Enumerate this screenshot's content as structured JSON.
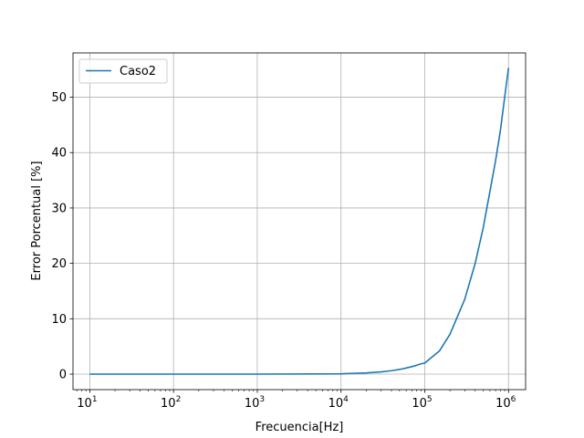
{
  "chart_data": {
    "type": "line",
    "title": "",
    "xlabel": "Frecuencia[Hz]",
    "ylabel": "Error Porcentual [%]",
    "xscale": "log",
    "xlim": [
      6.3,
      1600000
    ],
    "ylim": [
      -2.8,
      58
    ],
    "grid": true,
    "legend_position": "top-left",
    "x_ticks": [
      {
        "value": 10,
        "base": "10",
        "exp": "1"
      },
      {
        "value": 100,
        "base": "10",
        "exp": "2"
      },
      {
        "value": 1000,
        "base": "10",
        "exp": "3"
      },
      {
        "value": 10000,
        "base": "10",
        "exp": "4"
      },
      {
        "value": 100000,
        "base": "10",
        "exp": "5"
      },
      {
        "value": 1000000,
        "base": "10",
        "exp": "6"
      }
    ],
    "y_ticks": [
      0,
      10,
      20,
      30,
      40,
      50
    ],
    "series": [
      {
        "name": "Caso2",
        "color": "#1f77b4",
        "x": [
          10,
          100,
          1000,
          10000,
          20000,
          30000,
          40000,
          50000,
          60000,
          70000,
          80000,
          90000,
          100000,
          150000,
          200000,
          300000,
          400000,
          500000,
          600000,
          700000,
          800000,
          900000,
          1000000
        ],
        "y": [
          0,
          0,
          0,
          0.06,
          0.22,
          0.4,
          0.62,
          0.85,
          1.1,
          1.35,
          1.6,
          1.85,
          2.0,
          4.2,
          7.2,
          13.5,
          20.0,
          26.5,
          33.0,
          38.5,
          44.0,
          50.0,
          55.3
        ]
      }
    ]
  }
}
